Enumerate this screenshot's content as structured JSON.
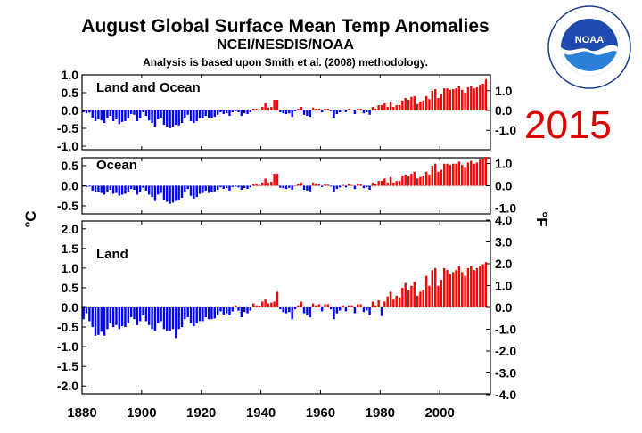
{
  "title": "August Global Surface Mean Temp Anomalies",
  "subtitle": "NCEI/NESDIS/NOAA",
  "note": "Analysis is based upon Smith et al. (2008) methodology.",
  "year_label": "2015",
  "logo": {
    "text": "NOAA",
    "ring_top": "NATIONAL OCEANIC AND ATMOSPHERIC ADMINISTRATION",
    "ring_bottom": "U.S. DEPARTMENT OF COMMERCE"
  },
  "colors": {
    "positive": "#ff0000",
    "negative": "#0000ff",
    "highlight": "#dd0000"
  },
  "chart_data": {
    "type": "bar",
    "x_range": [
      1880,
      2015
    ],
    "x_ticks": [
      "1880",
      "1900",
      "1920",
      "1940",
      "1960",
      "1980",
      "2000"
    ],
    "left_unit": "°C",
    "right_unit": "°F",
    "panels": [
      {
        "label": "Land and Ocean",
        "ylim_c": [
          -1.1,
          1.0
        ],
        "ylim_f": [
          -1.98,
          1.8
        ],
        "yticks_left": [
          "1.0",
          "0.5",
          "0.0",
          "-0.5",
          "-1.0"
        ],
        "yticks_right": [
          "1.0",
          "0.0",
          "-1.0"
        ],
        "years": [
          1880,
          1881,
          1882,
          1883,
          1884,
          1885,
          1886,
          1887,
          1888,
          1889,
          1890,
          1891,
          1892,
          1893,
          1894,
          1895,
          1896,
          1897,
          1898,
          1899,
          1900,
          1901,
          1902,
          1903,
          1904,
          1905,
          1906,
          1907,
          1908,
          1909,
          1910,
          1911,
          1912,
          1913,
          1914,
          1915,
          1916,
          1917,
          1918,
          1919,
          1920,
          1921,
          1922,
          1923,
          1924,
          1925,
          1926,
          1927,
          1928,
          1929,
          1930,
          1931,
          1932,
          1933,
          1934,
          1935,
          1936,
          1937,
          1938,
          1939,
          1940,
          1941,
          1942,
          1943,
          1944,
          1945,
          1946,
          1947,
          1948,
          1949,
          1950,
          1951,
          1952,
          1953,
          1954,
          1955,
          1956,
          1957,
          1958,
          1959,
          1960,
          1961,
          1962,
          1963,
          1964,
          1965,
          1966,
          1967,
          1968,
          1969,
          1970,
          1971,
          1972,
          1973,
          1974,
          1975,
          1976,
          1977,
          1978,
          1979,
          1980,
          1981,
          1982,
          1983,
          1984,
          1985,
          1986,
          1987,
          1988,
          1989,
          1990,
          1991,
          1992,
          1993,
          1994,
          1995,
          1996,
          1997,
          1998,
          1999,
          2000,
          2001,
          2002,
          2003,
          2004,
          2005,
          2006,
          2007,
          2008,
          2009,
          2010,
          2011,
          2012,
          2013,
          2014,
          2015
        ],
        "values": [
          -0.05,
          -0.08,
          -0.06,
          -0.2,
          -0.3,
          -0.25,
          -0.28,
          -0.35,
          -0.22,
          -0.15,
          -0.3,
          -0.25,
          -0.38,
          -0.32,
          -0.3,
          -0.22,
          -0.1,
          -0.12,
          -0.3,
          -0.2,
          -0.05,
          -0.15,
          -0.28,
          -0.35,
          -0.45,
          -0.25,
          -0.2,
          -0.4,
          -0.45,
          -0.5,
          -0.45,
          -0.4,
          -0.42,
          -0.35,
          -0.2,
          -0.12,
          -0.3,
          -0.35,
          -0.3,
          -0.22,
          -0.22,
          -0.15,
          -0.22,
          -0.2,
          -0.18,
          -0.12,
          -0.05,
          -0.1,
          -0.08,
          -0.15,
          -0.05,
          -0.02,
          -0.05,
          -0.15,
          -0.08,
          -0.1,
          -0.05,
          0.05,
          0.05,
          0.02,
          0.1,
          0.2,
          0.08,
          0.1,
          0.3,
          0.3,
          -0.05,
          -0.08,
          -0.1,
          -0.08,
          -0.18,
          -0.02,
          0.05,
          0.1,
          -0.12,
          -0.15,
          -0.18,
          0.08,
          0.05,
          0.05,
          -0.05,
          0.05,
          0.05,
          -0.02,
          -0.2,
          -0.1,
          -0.05,
          0.02,
          -0.05,
          0.05,
          0.02,
          -0.1,
          0.05,
          0.05,
          -0.08,
          -0.05,
          -0.12,
          0.1,
          0.05,
          0.15,
          0.15,
          0.2,
          0.1,
          0.25,
          0.1,
          0.15,
          0.15,
          0.28,
          0.35,
          0.3,
          0.38,
          0.4,
          0.18,
          0.25,
          0.28,
          0.4,
          0.32,
          0.55,
          0.6,
          0.35,
          0.45,
          0.62,
          0.62,
          0.58,
          0.6,
          0.62,
          0.68,
          0.58,
          0.5,
          0.65,
          0.7,
          0.62,
          0.65,
          0.72,
          0.75,
          0.88
        ]
      },
      {
        "label": "Ocean",
        "ylim_c": [
          -0.7,
          0.7
        ],
        "ylim_f": [
          -1.26,
          1.26
        ],
        "yticks_left": [
          "0.5",
          "0.0",
          "-0.5"
        ],
        "yticks_right": [
          "1.0",
          "0.0",
          "-1.0"
        ],
        "years": [
          1880,
          1881,
          1882,
          1883,
          1884,
          1885,
          1886,
          1887,
          1888,
          1889,
          1890,
          1891,
          1892,
          1893,
          1894,
          1895,
          1896,
          1897,
          1898,
          1899,
          1900,
          1901,
          1902,
          1903,
          1904,
          1905,
          1906,
          1907,
          1908,
          1909,
          1910,
          1911,
          1912,
          1913,
          1914,
          1915,
          1916,
          1917,
          1918,
          1919,
          1920,
          1921,
          1922,
          1923,
          1924,
          1925,
          1926,
          1927,
          1928,
          1929,
          1930,
          1931,
          1932,
          1933,
          1934,
          1935,
          1936,
          1937,
          1938,
          1939,
          1940,
          1941,
          1942,
          1943,
          1944,
          1945,
          1946,
          1947,
          1948,
          1949,
          1950,
          1951,
          1952,
          1953,
          1954,
          1955,
          1956,
          1957,
          1958,
          1959,
          1960,
          1961,
          1962,
          1963,
          1964,
          1965,
          1966,
          1967,
          1968,
          1969,
          1970,
          1971,
          1972,
          1973,
          1974,
          1975,
          1976,
          1977,
          1978,
          1979,
          1980,
          1981,
          1982,
          1983,
          1984,
          1985,
          1986,
          1987,
          1988,
          1989,
          1990,
          1991,
          1992,
          1993,
          1994,
          1995,
          1996,
          1997,
          1998,
          1999,
          2000,
          2001,
          2002,
          2003,
          2004,
          2005,
          2006,
          2007,
          2008,
          2009,
          2010,
          2011,
          2012,
          2013,
          2014,
          2015
        ],
        "values": [
          -0.02,
          -0.03,
          -0.02,
          -0.12,
          -0.15,
          -0.15,
          -0.18,
          -0.22,
          -0.15,
          -0.1,
          -0.2,
          -0.18,
          -0.25,
          -0.22,
          -0.2,
          -0.15,
          -0.08,
          -0.1,
          -0.22,
          -0.15,
          -0.05,
          -0.12,
          -0.22,
          -0.28,
          -0.38,
          -0.22,
          -0.18,
          -0.35,
          -0.4,
          -0.45,
          -0.42,
          -0.38,
          -0.36,
          -0.3,
          -0.15,
          -0.08,
          -0.25,
          -0.32,
          -0.28,
          -0.2,
          -0.18,
          -0.12,
          -0.18,
          -0.15,
          -0.14,
          -0.1,
          -0.04,
          -0.08,
          -0.06,
          -0.12,
          -0.03,
          -0.02,
          -0.04,
          -0.1,
          -0.06,
          -0.08,
          -0.04,
          0.04,
          0.05,
          0.02,
          0.08,
          0.18,
          0.08,
          0.1,
          0.3,
          0.3,
          -0.05,
          -0.06,
          -0.08,
          -0.05,
          -0.1,
          0.0,
          0.05,
          0.08,
          -0.1,
          -0.12,
          -0.14,
          0.08,
          0.06,
          0.04,
          -0.03,
          0.04,
          0.03,
          -0.02,
          -0.15,
          -0.08,
          -0.04,
          0.02,
          -0.04,
          0.05,
          0.02,
          -0.08,
          0.05,
          0.04,
          -0.06,
          -0.04,
          -0.1,
          0.08,
          0.05,
          0.12,
          0.12,
          0.18,
          0.08,
          0.22,
          0.08,
          0.12,
          0.12,
          0.25,
          0.28,
          0.25,
          0.3,
          0.35,
          0.18,
          0.22,
          0.25,
          0.35,
          0.28,
          0.5,
          0.55,
          0.35,
          0.4,
          0.55,
          0.55,
          0.52,
          0.55,
          0.55,
          0.6,
          0.52,
          0.45,
          0.58,
          0.62,
          0.55,
          0.58,
          0.65,
          0.68,
          0.72
        ]
      },
      {
        "label": "Land",
        "ylim_c": [
          -2.2,
          2.2
        ],
        "ylim_f": [
          -3.96,
          3.96
        ],
        "yticks_left": [
          "2.0",
          "1.5",
          "1.0",
          "0.5",
          "0.0",
          "-0.5",
          "-1.0",
          "-1.5",
          "-2.0"
        ],
        "yticks_right": [
          "4.0",
          "3.0",
          "2.0",
          "1.0",
          "0.0",
          "-1.0",
          "-2.0",
          "-3.0",
          "-4.0"
        ],
        "years": [
          1880,
          1881,
          1882,
          1883,
          1884,
          1885,
          1886,
          1887,
          1888,
          1889,
          1890,
          1891,
          1892,
          1893,
          1894,
          1895,
          1896,
          1897,
          1898,
          1899,
          1900,
          1901,
          1902,
          1903,
          1904,
          1905,
          1906,
          1907,
          1908,
          1909,
          1910,
          1911,
          1912,
          1913,
          1914,
          1915,
          1916,
          1917,
          1918,
          1919,
          1920,
          1921,
          1922,
          1923,
          1924,
          1925,
          1926,
          1927,
          1928,
          1929,
          1930,
          1931,
          1932,
          1933,
          1934,
          1935,
          1936,
          1937,
          1938,
          1939,
          1940,
          1941,
          1942,
          1943,
          1944,
          1945,
          1946,
          1947,
          1948,
          1949,
          1950,
          1951,
          1952,
          1953,
          1954,
          1955,
          1956,
          1957,
          1958,
          1959,
          1960,
          1961,
          1962,
          1963,
          1964,
          1965,
          1966,
          1967,
          1968,
          1969,
          1970,
          1971,
          1972,
          1973,
          1974,
          1975,
          1976,
          1977,
          1978,
          1979,
          1980,
          1981,
          1982,
          1983,
          1984,
          1985,
          1986,
          1987,
          1988,
          1989,
          1990,
          1991,
          1992,
          1993,
          1994,
          1995,
          1996,
          1997,
          1998,
          1999,
          2000,
          2001,
          2002,
          2003,
          2004,
          2005,
          2006,
          2007,
          2008,
          2009,
          2010,
          2011,
          2012,
          2013,
          2014,
          2015
        ],
        "values": [
          -0.3,
          -0.15,
          -0.35,
          -0.5,
          -0.72,
          -0.7,
          -0.62,
          -0.72,
          -0.55,
          -0.4,
          -0.5,
          -0.45,
          -0.55,
          -0.48,
          -0.5,
          -0.4,
          -0.25,
          -0.3,
          -0.45,
          -0.35,
          -0.2,
          -0.35,
          -0.45,
          -0.55,
          -0.6,
          -0.4,
          -0.35,
          -0.55,
          -0.6,
          -0.6,
          -0.55,
          -0.78,
          -0.55,
          -0.5,
          -0.3,
          -0.25,
          -0.4,
          -0.48,
          -0.4,
          -0.35,
          -0.35,
          -0.25,
          -0.3,
          -0.3,
          -0.28,
          -0.2,
          -0.1,
          -0.18,
          -0.15,
          -0.2,
          -0.1,
          0.05,
          -0.08,
          -0.25,
          -0.12,
          -0.15,
          -0.08,
          0.1,
          0.05,
          0.03,
          0.15,
          0.2,
          0.1,
          0.12,
          0.15,
          0.4,
          -0.05,
          -0.12,
          -0.15,
          -0.12,
          -0.3,
          -0.05,
          0.05,
          0.15,
          -0.15,
          -0.2,
          -0.25,
          0.1,
          0.05,
          0.08,
          -0.1,
          0.08,
          0.08,
          -0.05,
          -0.3,
          -0.15,
          -0.08,
          0.05,
          -0.1,
          0.05,
          0.05,
          -0.15,
          0.08,
          0.08,
          -0.12,
          -0.08,
          -0.2,
          0.15,
          0.05,
          0.18,
          -0.22,
          0.15,
          0.28,
          0.4,
          0.2,
          0.3,
          0.25,
          0.5,
          0.62,
          0.45,
          0.55,
          0.65,
          0.3,
          0.4,
          0.45,
          0.8,
          0.55,
          0.95,
          1.0,
          0.55,
          0.7,
          1.0,
          0.95,
          0.85,
          0.9,
          0.95,
          1.05,
          0.9,
          0.8,
          1.0,
          1.05,
          0.95,
          1.0,
          1.05,
          1.1,
          1.15
        ]
      }
    ]
  }
}
